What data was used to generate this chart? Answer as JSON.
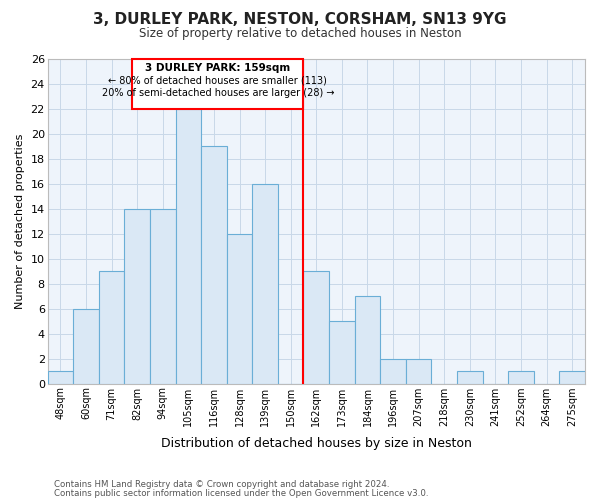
{
  "title": "3, DURLEY PARK, NESTON, CORSHAM, SN13 9YG",
  "subtitle": "Size of property relative to detached houses in Neston",
  "xlabel": "Distribution of detached houses by size in Neston",
  "ylabel": "Number of detached properties",
  "bin_labels": [
    "48sqm",
    "60sqm",
    "71sqm",
    "82sqm",
    "94sqm",
    "105sqm",
    "116sqm",
    "128sqm",
    "139sqm",
    "150sqm",
    "162sqm",
    "173sqm",
    "184sqm",
    "196sqm",
    "207sqm",
    "218sqm",
    "230sqm",
    "241sqm",
    "252sqm",
    "264sqm",
    "275sqm"
  ],
  "bar_heights": [
    1,
    6,
    9,
    14,
    14,
    22,
    19,
    12,
    16,
    0,
    9,
    5,
    7,
    2,
    2,
    0,
    1,
    0,
    1,
    0,
    1
  ],
  "bar_color": "#dae8f5",
  "bar_edgecolor": "#6aaed6",
  "annotation_title": "3 DURLEY PARK: 159sqm",
  "annotation_line1": "← 80% of detached houses are smaller (113)",
  "annotation_line2": "20% of semi-detached houses are larger (28) →",
  "ylim": [
    0,
    26
  ],
  "yticks": [
    0,
    2,
    4,
    6,
    8,
    10,
    12,
    14,
    16,
    18,
    20,
    22,
    24,
    26
  ],
  "footer_line1": "Contains HM Land Registry data © Crown copyright and database right 2024.",
  "footer_line2": "Contains public sector information licensed under the Open Government Licence v3.0.",
  "background_color": "#eef4fb",
  "plot_bg_color": "#eef4fb",
  "grid_color": "#c8d8e8"
}
